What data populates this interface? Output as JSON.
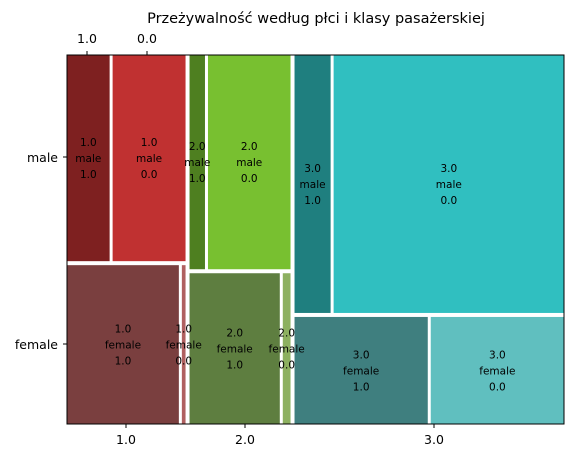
{
  "chart_data": {
    "type": "mosaic",
    "title": "Przeżywalność według płci i klasy pasażerskiej",
    "x_variable_ticks": [
      "1.0",
      "2.0",
      "3.0"
    ],
    "y_variable_ticks": [
      "female",
      "male"
    ],
    "top_ticks": [
      "1.0",
      "0.0"
    ],
    "cells": [
      {
        "pclass": "1.0",
        "sex": "male",
        "survived": "1.0",
        "value": 45,
        "color": "#7e2020",
        "label": "1.0\nmale\n1.0"
      },
      {
        "pclass": "1.0",
        "sex": "male",
        "survived": "0.0",
        "value": 77,
        "color": "#c03131",
        "label": "1.0\nmale\n0.0"
      },
      {
        "pclass": "1.0",
        "sex": "female",
        "survived": "1.0",
        "value": 91,
        "color": "#7a3f3f",
        "label": "1.0\nfemale\n1.0"
      },
      {
        "pclass": "1.0",
        "sex": "female",
        "survived": "0.0",
        "value": 3,
        "color": "#b06060",
        "label": "1.0\nfemale\n0.0"
      },
      {
        "pclass": "2.0",
        "sex": "male",
        "survived": "1.0",
        "value": 17,
        "color": "#4e7f20",
        "label": "2.0\nmale\n1.0"
      },
      {
        "pclass": "2.0",
        "sex": "male",
        "survived": "0.0",
        "value": 91,
        "color": "#78c030",
        "label": "2.0\nmale\n0.0"
      },
      {
        "pclass": "2.0",
        "sex": "female",
        "survived": "1.0",
        "value": 70,
        "color": "#5e7e40",
        "label": "2.0\nfemale\n1.0"
      },
      {
        "pclass": "2.0",
        "sex": "female",
        "survived": "0.0",
        "value": 6,
        "color": "#8db060",
        "label": "2.0\nfemale\n0.0"
      },
      {
        "pclass": "3.0",
        "sex": "male",
        "survived": "1.0",
        "value": 47,
        "color": "#1f7f7f",
        "label": "3.0\nmale\n1.0"
      },
      {
        "pclass": "3.0",
        "sex": "male",
        "survived": "0.0",
        "value": 300,
        "color": "#30bfc0",
        "label": "3.0\nmale\n0.0"
      },
      {
        "pclass": "3.0",
        "sex": "female",
        "survived": "1.0",
        "value": 72,
        "color": "#3f7f7f",
        "label": "3.0\nfemale\n1.0"
      },
      {
        "pclass": "3.0",
        "sex": "female",
        "survived": "0.0",
        "value": 72,
        "color": "#60bfbf",
        "label": "3.0\nfemale\n0.0"
      }
    ]
  }
}
